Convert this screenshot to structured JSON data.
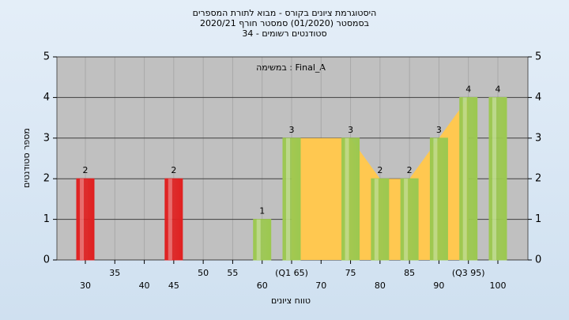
{
  "chart_data": {
    "type": "bar",
    "title": "היסטוגרמת ציונים בקורס - מבוא לתורת המספרים",
    "subtitle": "בסמסטר  (01/2020)  סמסטר חורף 2020/21",
    "subtitle2": "34 - סטודנטים רשומים",
    "annotation": "במשימה : Final_A",
    "x_label": "טווח ציונים",
    "y_label": "מספר סטודנטים",
    "categories": [
      "30",
      "35",
      "40",
      "45",
      "50",
      "55",
      "60",
      "(Q1 65)",
      "70",
      "75",
      "80",
      "85",
      "90",
      "(Q3 95)",
      "100"
    ],
    "values": [
      2,
      0,
      0,
      2,
      0,
      0,
      1,
      3,
      0,
      3,
      2,
      2,
      3,
      4,
      4
    ],
    "value_labels": [
      "2",
      null,
      null,
      "2",
      null,
      null,
      "1",
      "3",
      null,
      "3",
      "2",
      "2",
      "3",
      "4",
      "4"
    ],
    "colors": [
      "#e02020",
      null,
      null,
      "#e02020",
      null,
      null,
      "#9cc850",
      "#9cc850",
      null,
      "#9cc850",
      "#9cc850",
      "#9cc850",
      "#9cc850",
      "#9cc850",
      "#9cc850"
    ],
    "area": {
      "color": "#ffc850",
      "values": [
        null,
        null,
        null,
        null,
        null,
        null,
        null,
        3,
        3,
        3,
        2,
        2,
        3,
        4,
        null
      ]
    },
    "ylim": [
      0,
      5
    ],
    "yticks": [
      0,
      1,
      2,
      3,
      4,
      5
    ],
    "grid": true
  }
}
